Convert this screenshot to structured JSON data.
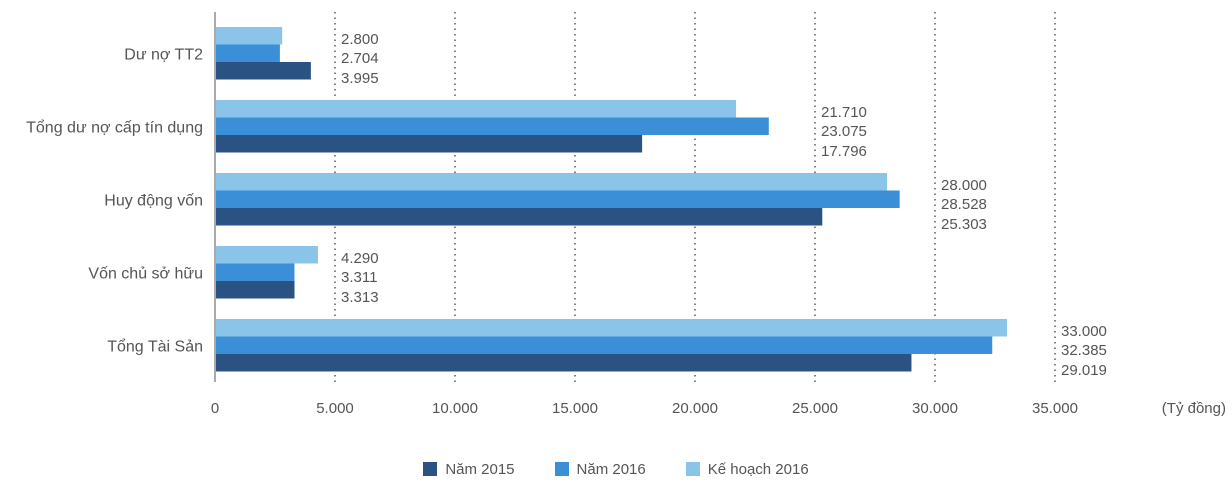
{
  "chart_data": {
    "type": "bar",
    "orientation": "horizontal",
    "categories": [
      "Dư nợ TT2",
      "Tổng dư nợ cấp tín dụng",
      "Huy động vốn",
      "Vốn chủ sở hữu",
      "Tổng Tài Sản"
    ],
    "series": [
      {
        "name": "Năm 2015",
        "color": "#2a5384",
        "values": [
          3995,
          17796,
          25303,
          3313,
          29019
        ]
      },
      {
        "name": "Năm 2016",
        "color": "#3b8fd6",
        "values": [
          2704,
          23075,
          28528,
          3311,
          32385
        ]
      },
      {
        "name": "Kế hoạch  2016",
        "color": "#8ac4e8",
        "values": [
          2800,
          21710,
          28000,
          4290,
          33000
        ]
      }
    ],
    "data_labels": [
      [
        "2.800",
        "2.704",
        "3.995"
      ],
      [
        "21.710",
        "23.075",
        "17.796"
      ],
      [
        "28.000",
        "28.528",
        "25.303"
      ],
      [
        "4.290",
        "3.311",
        "3.313"
      ],
      [
        "33.000",
        "32.385",
        "29.019"
      ]
    ],
    "x_ticks": [
      0,
      5000,
      10000,
      15000,
      20000,
      25000,
      30000,
      35000
    ],
    "x_tick_labels": [
      "0",
      "5.000",
      "10.000",
      "15.000",
      "20.000",
      "25.000",
      "30.000",
      "35.000"
    ],
    "xlabel": "(Tỷ đồng)",
    "xlim": [
      0,
      35000
    ],
    "grid": "vertical dotted",
    "legend_position": "bottom"
  }
}
